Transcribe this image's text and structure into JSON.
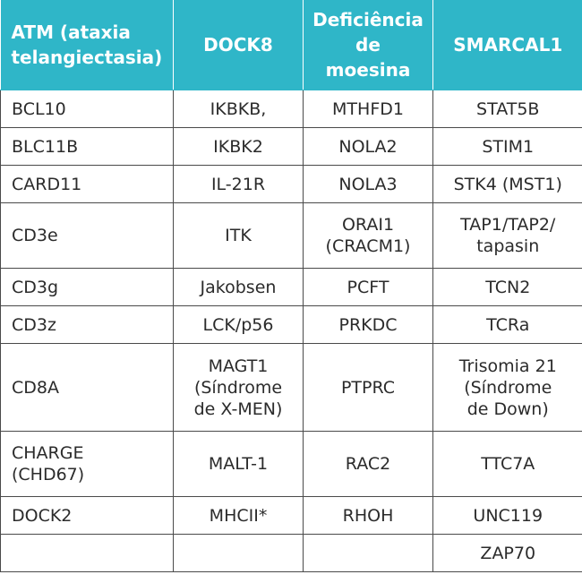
{
  "table": {
    "headers": [
      "ATM (ataxia\ntelangiectasia)",
      "DOCK8",
      "Deficiência\nde\nmoesina",
      "SMARCAL1"
    ],
    "rows": [
      [
        "BCL10",
        "IKBKB,",
        "MTHFD1",
        "STAT5B"
      ],
      [
        "BLC11B",
        "IKBK2",
        "NOLA2",
        "STIM1"
      ],
      [
        "CARD11",
        "IL-21R",
        "NOLA3",
        "STK4 (MST1)"
      ],
      [
        "CD3e",
        "ITK",
        "ORAI1\n(CRACM1)",
        "TAP1/TAP2/\ntapasin"
      ],
      [
        "CD3g",
        "Jakobsen",
        "PCFT",
        "TCN2"
      ],
      [
        "CD3z",
        "LCK/p56",
        "PRKDC",
        "TCRa"
      ],
      [
        "CD8A",
        "MAGT1\n(Síndrome\nde X-MEN)",
        "PTPRC",
        "Trisomia 21\n(Síndrome\nde Down)"
      ],
      [
        "CHARGE\n(CHD67)",
        "MALT-1",
        "RAC2",
        "TTC7A"
      ],
      [
        "DOCK2",
        "MHCII*",
        "RHOH",
        "UNC119"
      ],
      [
        "",
        "",
        "",
        "ZAP70"
      ]
    ]
  },
  "colors": {
    "header_bg": "#2fb6c8",
    "header_text": "#ffffff",
    "border": "#4a4a4a",
    "text": "#2b2b2b"
  }
}
